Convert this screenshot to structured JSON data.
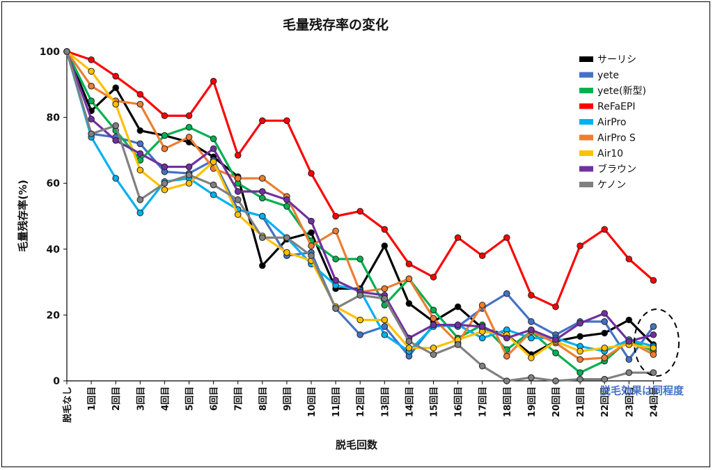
{
  "chart_data": {
    "type": "line",
    "title": "毛量残存率の変化",
    "xlabel": "脱毛回数",
    "ylabel": "毛量残存率(%)",
    "ylim": [
      0,
      100
    ],
    "yticks": [
      0,
      20,
      40,
      60,
      80,
      100
    ],
    "grid": false,
    "legend_position": "top-right",
    "categories": [
      "脱毛なし",
      "1回目",
      "2回目",
      "3回目",
      "4回目",
      "5回目",
      "6回目",
      "7回目",
      "8回目",
      "9回目",
      "10回目",
      "11回目",
      "12回目",
      "13回目",
      "14回目",
      "15回目",
      "16回目",
      "17回目",
      "18回目",
      "19回目",
      "20回目",
      "21回目",
      "22回目",
      "23回目",
      "24回目"
    ],
    "series": [
      {
        "name": "サーリシ",
        "color": "#000000",
        "values": [
          100,
          82,
          89,
          76,
          74.5,
          72.5,
          68,
          62,
          35,
          43,
          45,
          28,
          28,
          41,
          23.5,
          18,
          22.5,
          16,
          14,
          8,
          12,
          13.5,
          14.5,
          18.5,
          11
        ]
      },
      {
        "name": "yete",
        "color": "#4472C4",
        "values": [
          100,
          75,
          74,
          72,
          63.5,
          63,
          67,
          52,
          50,
          38,
          39,
          22,
          14,
          16.5,
          7.5,
          17,
          16.5,
          22,
          26.5,
          18,
          14,
          18,
          18,
          6.5,
          16.5
        ]
      },
      {
        "name": "yete(新型)",
        "color": "#00B050",
        "values": [
          100,
          85,
          76,
          67,
          74.5,
          77,
          73.5,
          60,
          55.5,
          53,
          42.5,
          37,
          37,
          23,
          31,
          21.5,
          13,
          17,
          9.5,
          15,
          8.5,
          2.5,
          6,
          12.5,
          9
        ]
      },
      {
        "name": "ReFaEPI",
        "color": "#FF0000",
        "values": [
          100,
          97.5,
          92.5,
          87,
          80.5,
          80.5,
          91,
          68.5,
          79,
          79,
          63,
          50,
          51.5,
          46,
          35.5,
          31.5,
          43.5,
          38,
          43.5,
          26,
          22.5,
          41,
          46,
          37,
          30.5
        ]
      },
      {
        "name": "AirPro",
        "color": "#00B0F0",
        "values": [
          100,
          74,
          61.5,
          51,
          60.5,
          61.5,
          56.5,
          52,
          50,
          43.5,
          35.5,
          29,
          27.5,
          14,
          9,
          16.5,
          17,
          13,
          15.5,
          13,
          13,
          10.5,
          9,
          12.5,
          10.5
        ]
      },
      {
        "name": "AirPro S",
        "color": "#ED7D31",
        "values": [
          100,
          89.5,
          85,
          84,
          70.5,
          74,
          64.5,
          61.5,
          61.5,
          56,
          41,
          45.5,
          27,
          28,
          31,
          19,
          11.5,
          23,
          7.5,
          15,
          11.5,
          6.5,
          7,
          12,
          8
        ]
      },
      {
        "name": "Air10",
        "color": "#FFC000",
        "values": [
          100,
          94,
          84,
          64,
          58,
          60,
          66.5,
          50.5,
          44,
          39,
          36.5,
          22.5,
          18.5,
          18.5,
          10,
          10,
          12.5,
          15,
          14,
          7,
          12,
          9,
          10,
          11,
          10
        ]
      },
      {
        "name": "ブラウン",
        "color": "#7030A0",
        "values": [
          100,
          79.5,
          73,
          69,
          65,
          65,
          70.5,
          57.5,
          57.5,
          55,
          48.5,
          30.5,
          27,
          26,
          13,
          17,
          17,
          16.5,
          13,
          15.5,
          12.5,
          17.5,
          20.5,
          12,
          14
        ]
      },
      {
        "name": "ケノン",
        "color": "#808080",
        "values": [
          100,
          75,
          77.5,
          55,
          60,
          62.5,
          59.5,
          55,
          43.5,
          43.5,
          38,
          22,
          26,
          25,
          12,
          8,
          11,
          4.5,
          0,
          1,
          0,
          0.5,
          0.5,
          2.5,
          2.5
        ]
      }
    ],
    "annotation": {
      "text": "脱毛効果は同程度",
      "color": "#4472C4"
    }
  }
}
